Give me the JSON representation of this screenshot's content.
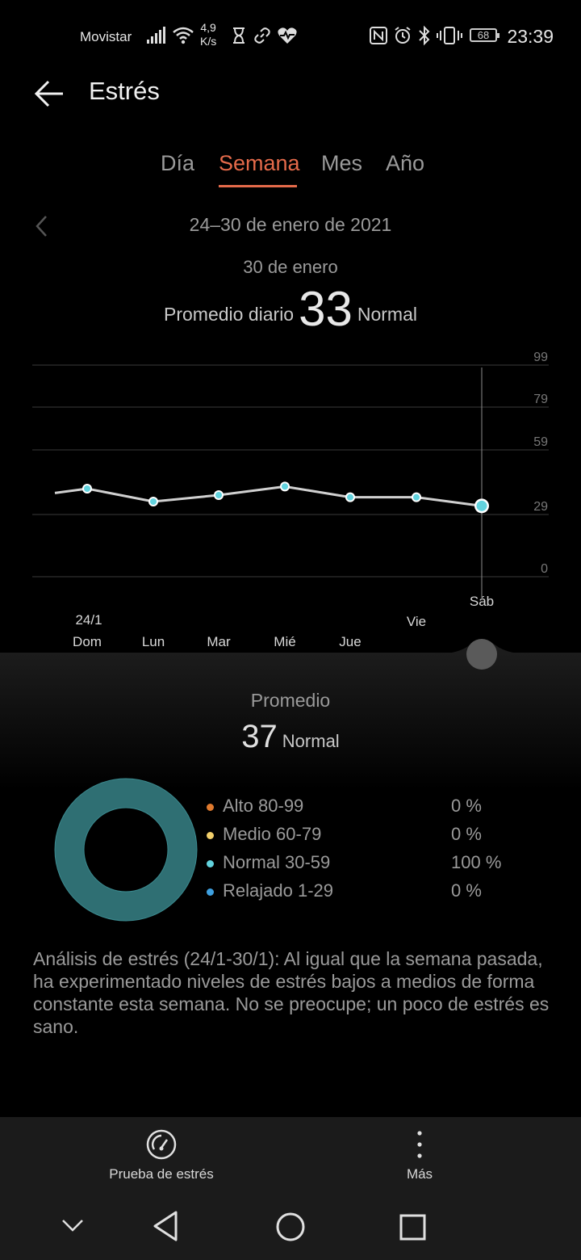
{
  "status_bar": {
    "carrier": "Movistar",
    "speed_value": "4,9",
    "speed_unit": "K/s",
    "battery": "68",
    "time": "23:39"
  },
  "header": {
    "title": "Estrés"
  },
  "tabs": [
    {
      "label": "Día",
      "active": false
    },
    {
      "label": "Semana",
      "active": true
    },
    {
      "label": "Mes",
      "active": false
    },
    {
      "label": "Año",
      "active": false
    }
  ],
  "period": {
    "range": "24–30 de enero de 2021",
    "selected_date": "30 de enero",
    "daily_avg_label": "Promedio diario",
    "daily_avg_value": "33",
    "daily_avg_status": "Normal"
  },
  "chart_data": {
    "type": "line",
    "y_ticks": [
      99,
      79,
      59,
      29,
      0
    ],
    "ylim": [
      0,
      99
    ],
    "grid": true,
    "categories": [
      "Dom",
      "Lun",
      "Mar",
      "Mié",
      "Jue",
      "Vie",
      "Sáb"
    ],
    "date_label": "24/1",
    "selected_index": 6,
    "values": [
      41,
      35,
      38,
      42,
      37,
      37,
      33
    ],
    "lead_in_value": 39
  },
  "summary": {
    "title": "Promedio",
    "value": "37",
    "status": "Normal",
    "legend": [
      {
        "label": "Alto 80-99",
        "pct": "0 %",
        "color": "#e07a2e"
      },
      {
        "label": "Medio 60-79",
        "pct": "0 %",
        "color": "#f2cf6b"
      },
      {
        "label": "Normal 30-59",
        "pct": "100 %",
        "color": "#62d3de"
      },
      {
        "label": "Relajado 1-29",
        "pct": "0 %",
        "color": "#3ea0e0"
      }
    ],
    "donut_color": "#2f6f73",
    "analysis": "Análisis de estrés (24/1-30/1): Al igual que la semana pasada, ha experimentado niveles de estrés bajos a medios de forma constante esta semana. No se preocupe; un poco de estrés es sano."
  },
  "actions": {
    "test_label": "Prueba de estrés",
    "more_label": "Más"
  }
}
